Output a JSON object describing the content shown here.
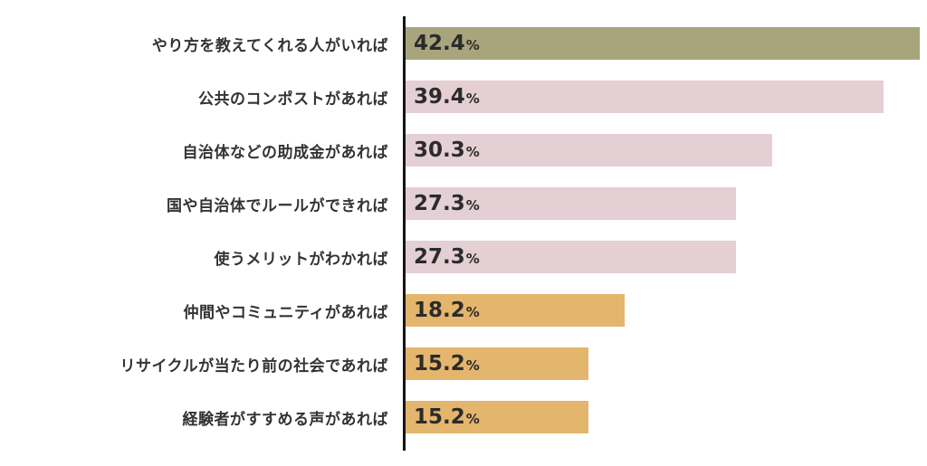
{
  "chart_data": {
    "type": "bar",
    "orientation": "horizontal",
    "title": "",
    "xlabel": "",
    "ylabel": "",
    "xlim": [
      0,
      43
    ],
    "grid": false,
    "legend": false,
    "percent_symbol": "%",
    "categories": [
      "やり方を教えてくれる人がいれば",
      "公共のコンポストがあれば",
      "自治体などの助成金があれば",
      "国や自治体でルールができれば",
      "使うメリットがわかれば",
      "仲間やコミュニティがあれば",
      "リサイクルが当たり前の社会であれば",
      "経験者がすすめる声があれば"
    ],
    "values": [
      42.4,
      39.4,
      30.3,
      27.3,
      27.3,
      18.2,
      15.2,
      15.2
    ],
    "value_labels": [
      "42.4",
      "39.4",
      "30.3",
      "27.3",
      "27.3",
      "18.2",
      "15.2",
      "15.2"
    ],
    "colors": [
      "#a8a57c",
      "#e4cfd4",
      "#e4cfd4",
      "#e4cfd4",
      "#e4cfd4",
      "#e4b56c",
      "#e4b56c",
      "#e4b56c"
    ],
    "axis_color": "#161616",
    "label_color": "#333333",
    "value_color": "#2b2b2b"
  }
}
